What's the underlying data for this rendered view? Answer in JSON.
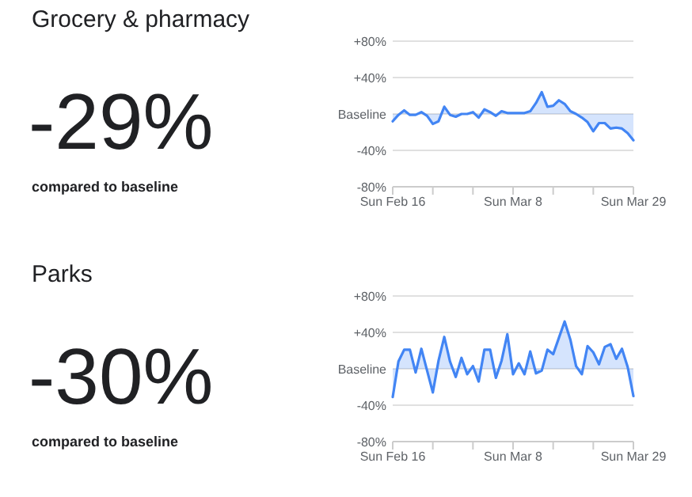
{
  "chart_data": [
    {
      "type": "other",
      "title": "Grocery & pharmacy",
      "annotations": [
        "-29%",
        "compared to baseline"
      ]
    },
    {
      "type": "area",
      "x": [
        "--02-16",
        "--02-17",
        "--02-18",
        "--02-19",
        "--02-20",
        "--02-21",
        "--02-22",
        "--02-23",
        "--02-24",
        "--02-25",
        "--02-26",
        "--02-27",
        "--02-28",
        "--02-29",
        "--03-01",
        "--03-02",
        "--03-03",
        "--03-04",
        "--03-05",
        "--03-06",
        "--03-07",
        "--03-08",
        "--03-09",
        "--03-10",
        "--03-11",
        "--03-12",
        "--03-13",
        "--03-14",
        "--03-15",
        "--03-16",
        "--03-17",
        "--03-18",
        "--03-19",
        "--03-20",
        "--03-21",
        "--03-22",
        "--03-23",
        "--03-24",
        "--03-25",
        "--03-26",
        "--03-27",
        "--03-28",
        "--03-29"
      ],
      "series": [
        {
          "color": "#4285f4",
          "values": [
            -8,
            -1,
            4,
            -1,
            -1,
            2,
            -2,
            -11,
            -8,
            8,
            -1,
            -3,
            0,
            0,
            2,
            -4,
            5,
            2,
            -2,
            3,
            1,
            1,
            1,
            1,
            3,
            12,
            24,
            8,
            9,
            15,
            11,
            3,
            0,
            -4,
            -9,
            -19,
            -10,
            -10,
            -16,
            -15,
            -16,
            -21,
            -29
          ]
        }
      ],
      "xlim": [
        "--02-16",
        "--03-29"
      ],
      "xticks": [
        {
          "value": "--02-16",
          "label": "Sun Feb 16"
        },
        {
          "value": "--02-23",
          "label": null
        },
        {
          "value": "--03-01",
          "label": null
        },
        {
          "value": "--03-08",
          "label": "Sun Mar 8"
        },
        {
          "value": "--03-15",
          "label": null
        },
        {
          "value": "--03-22",
          "label": null
        },
        {
          "value": "--03-29",
          "label": "Sun Mar 29"
        }
      ],
      "ylim": [
        -80,
        80
      ],
      "yticks": [
        {
          "value": -80,
          "label": "-80%"
        },
        {
          "value": -40,
          "label": "-40%"
        },
        {
          "value": 0,
          "label": "Baseline"
        },
        {
          "value": 40,
          "label": "+40%"
        },
        {
          "value": 80,
          "label": "+80%"
        }
      ],
      "grid": "y",
      "marker": "none",
      "line_style": "solid"
    },
    {
      "type": "other",
      "title": "Parks",
      "annotations": [
        "-30%",
        "compared to baseline"
      ]
    },
    {
      "type": "area",
      "x": [
        "--02-16",
        "--02-17",
        "--02-18",
        "--02-19",
        "--02-20",
        "--02-21",
        "--02-22",
        "--02-23",
        "--02-24",
        "--02-25",
        "--02-26",
        "--02-27",
        "--02-28",
        "--02-29",
        "--03-01",
        "--03-02",
        "--03-03",
        "--03-04",
        "--03-05",
        "--03-06",
        "--03-07",
        "--03-08",
        "--03-09",
        "--03-10",
        "--03-11",
        "--03-12",
        "--03-13",
        "--03-14",
        "--03-15",
        "--03-16",
        "--03-17",
        "--03-18",
        "--03-19",
        "--03-20",
        "--03-21",
        "--03-22",
        "--03-23",
        "--03-24",
        "--03-25",
        "--03-26",
        "--03-27",
        "--03-28",
        "--03-29"
      ],
      "series": [
        {
          "color": "#4285f4",
          "values": [
            -31,
            8,
            21,
            21,
            -4,
            22,
            -2,
            -26,
            9,
            35,
            8,
            -9,
            12,
            -6,
            3,
            -14,
            21,
            21,
            -10,
            9,
            38,
            -6,
            6,
            -6,
            19,
            -5,
            -2,
            21,
            16,
            34,
            52,
            32,
            3,
            -6,
            25,
            18,
            5,
            24,
            27,
            11,
            22,
            2,
            -30
          ]
        }
      ],
      "xlim": [
        "--02-16",
        "--03-29"
      ],
      "xticks": [
        {
          "value": "--02-16",
          "label": "Sun Feb 16"
        },
        {
          "value": "--02-23",
          "label": null
        },
        {
          "value": "--03-01",
          "label": null
        },
        {
          "value": "--03-08",
          "label": "Sun Mar 8"
        },
        {
          "value": "--03-15",
          "label": null
        },
        {
          "value": "--03-22",
          "label": null
        },
        {
          "value": "--03-29",
          "label": "Sun Mar 29"
        }
      ],
      "ylim": [
        -80,
        80
      ],
      "yticks": [
        {
          "value": -80,
          "label": "-80%"
        },
        {
          "value": -40,
          "label": "-40%"
        },
        {
          "value": 0,
          "label": "Baseline"
        },
        {
          "value": 40,
          "label": "+40%"
        },
        {
          "value": 80,
          "label": "+80%"
        }
      ],
      "grid": "y",
      "marker": "none",
      "line_style": "solid"
    }
  ]
}
